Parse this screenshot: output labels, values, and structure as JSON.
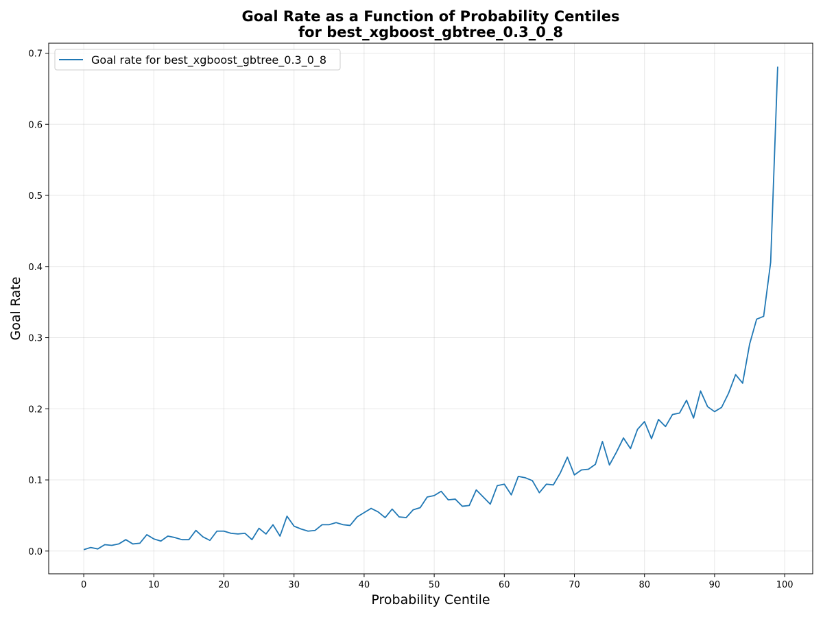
{
  "chart_data": {
    "type": "line",
    "title": "Goal Rate as a Function of Probability Centiles",
    "subtitle": "for best_xgboost_gbtree_0.3_0_8",
    "xlabel": "Probability Centile",
    "ylabel": "Goal Rate",
    "xlim": [
      -5,
      104
    ],
    "ylim": [
      -0.032,
      0.714
    ],
    "xticks": [
      0,
      10,
      20,
      30,
      40,
      50,
      60,
      70,
      80,
      90,
      100
    ],
    "yticks": [
      0.0,
      0.1,
      0.2,
      0.3,
      0.4,
      0.5,
      0.6,
      0.7
    ],
    "xtick_labels": [
      "0",
      "10",
      "20",
      "30",
      "40",
      "50",
      "60",
      "70",
      "80",
      "90",
      "100"
    ],
    "ytick_labels": [
      "0.0",
      "0.1",
      "0.2",
      "0.3",
      "0.4",
      "0.5",
      "0.6",
      "0.7"
    ],
    "grid": true,
    "legend_position": "upper-left",
    "series": [
      {
        "name": "Goal rate for best_xgboost_gbtree_0.3_0_8",
        "color": "#1f77b4",
        "x": [
          0,
          1,
          2,
          3,
          4,
          5,
          6,
          7,
          8,
          9,
          10,
          11,
          12,
          13,
          14,
          15,
          16,
          17,
          18,
          19,
          20,
          21,
          22,
          23,
          24,
          25,
          26,
          27,
          28,
          29,
          30,
          31,
          32,
          33,
          34,
          35,
          36,
          37,
          38,
          39,
          40,
          41,
          42,
          43,
          44,
          45,
          46,
          47,
          48,
          49,
          50,
          51,
          52,
          53,
          54,
          55,
          56,
          57,
          58,
          59,
          60,
          61,
          62,
          63,
          64,
          65,
          66,
          67,
          68,
          69,
          70,
          71,
          72,
          73,
          74,
          75,
          76,
          77,
          78,
          79,
          80,
          81,
          82,
          83,
          84,
          85,
          86,
          87,
          88,
          89,
          90,
          91,
          92,
          93,
          94,
          95,
          96,
          97,
          98,
          99
        ],
        "values": [
          0.002,
          0.005,
          0.003,
          0.009,
          0.008,
          0.01,
          0.016,
          0.01,
          0.011,
          0.023,
          0.017,
          0.014,
          0.021,
          0.019,
          0.016,
          0.016,
          0.029,
          0.02,
          0.015,
          0.028,
          0.028,
          0.025,
          0.024,
          0.025,
          0.016,
          0.032,
          0.024,
          0.037,
          0.021,
          0.049,
          0.035,
          0.031,
          0.028,
          0.029,
          0.037,
          0.037,
          0.04,
          0.037,
          0.036,
          0.048,
          0.054,
          0.06,
          0.055,
          0.047,
          0.059,
          0.048,
          0.047,
          0.058,
          0.061,
          0.076,
          0.078,
          0.084,
          0.072,
          0.073,
          0.063,
          0.064,
          0.086,
          0.076,
          0.066,
          0.092,
          0.094,
          0.079,
          0.105,
          0.103,
          0.099,
          0.082,
          0.094,
          0.093,
          0.11,
          0.132,
          0.107,
          0.114,
          0.115,
          0.122,
          0.154,
          0.121,
          0.139,
          0.159,
          0.144,
          0.171,
          0.182,
          0.158,
          0.185,
          0.175,
          0.192,
          0.194,
          0.212,
          0.187,
          0.225,
          0.203,
          0.196,
          0.202,
          0.222,
          0.248,
          0.236,
          0.291,
          0.326,
          0.33,
          0.406,
          0.681
        ]
      }
    ]
  }
}
